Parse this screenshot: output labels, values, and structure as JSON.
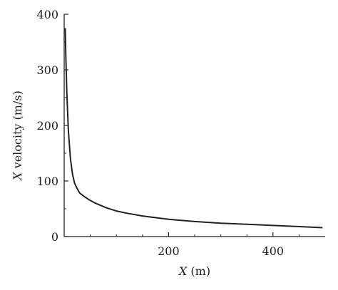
{
  "chart_data": {
    "type": "line",
    "title": "",
    "xlabel": {
      "var": "X",
      "unit": " (m)"
    },
    "ylabel": {
      "var": "X",
      "unit": " velocity (m/s)"
    },
    "xlim": [
      0,
      500
    ],
    "ylim": [
      0,
      400
    ],
    "xticks": [
      200,
      400
    ],
    "yticks": [
      0,
      100,
      200,
      300,
      400
    ],
    "grid": false,
    "legend": "none",
    "series": [
      {
        "color": "#222222",
        "x": [
          2,
          3,
          5,
          8,
          12,
          16,
          20,
          25,
          30,
          40,
          50,
          60,
          80,
          100,
          120,
          150,
          200,
          250,
          300,
          350,
          400,
          450,
          495
        ],
        "y": [
          375,
          330,
          260,
          190,
          140,
          112,
          96,
          86,
          78,
          71,
          65,
          60,
          52,
          46,
          42,
          37,
          31,
          27,
          24,
          22,
          20,
          18,
          16
        ]
      }
    ]
  }
}
